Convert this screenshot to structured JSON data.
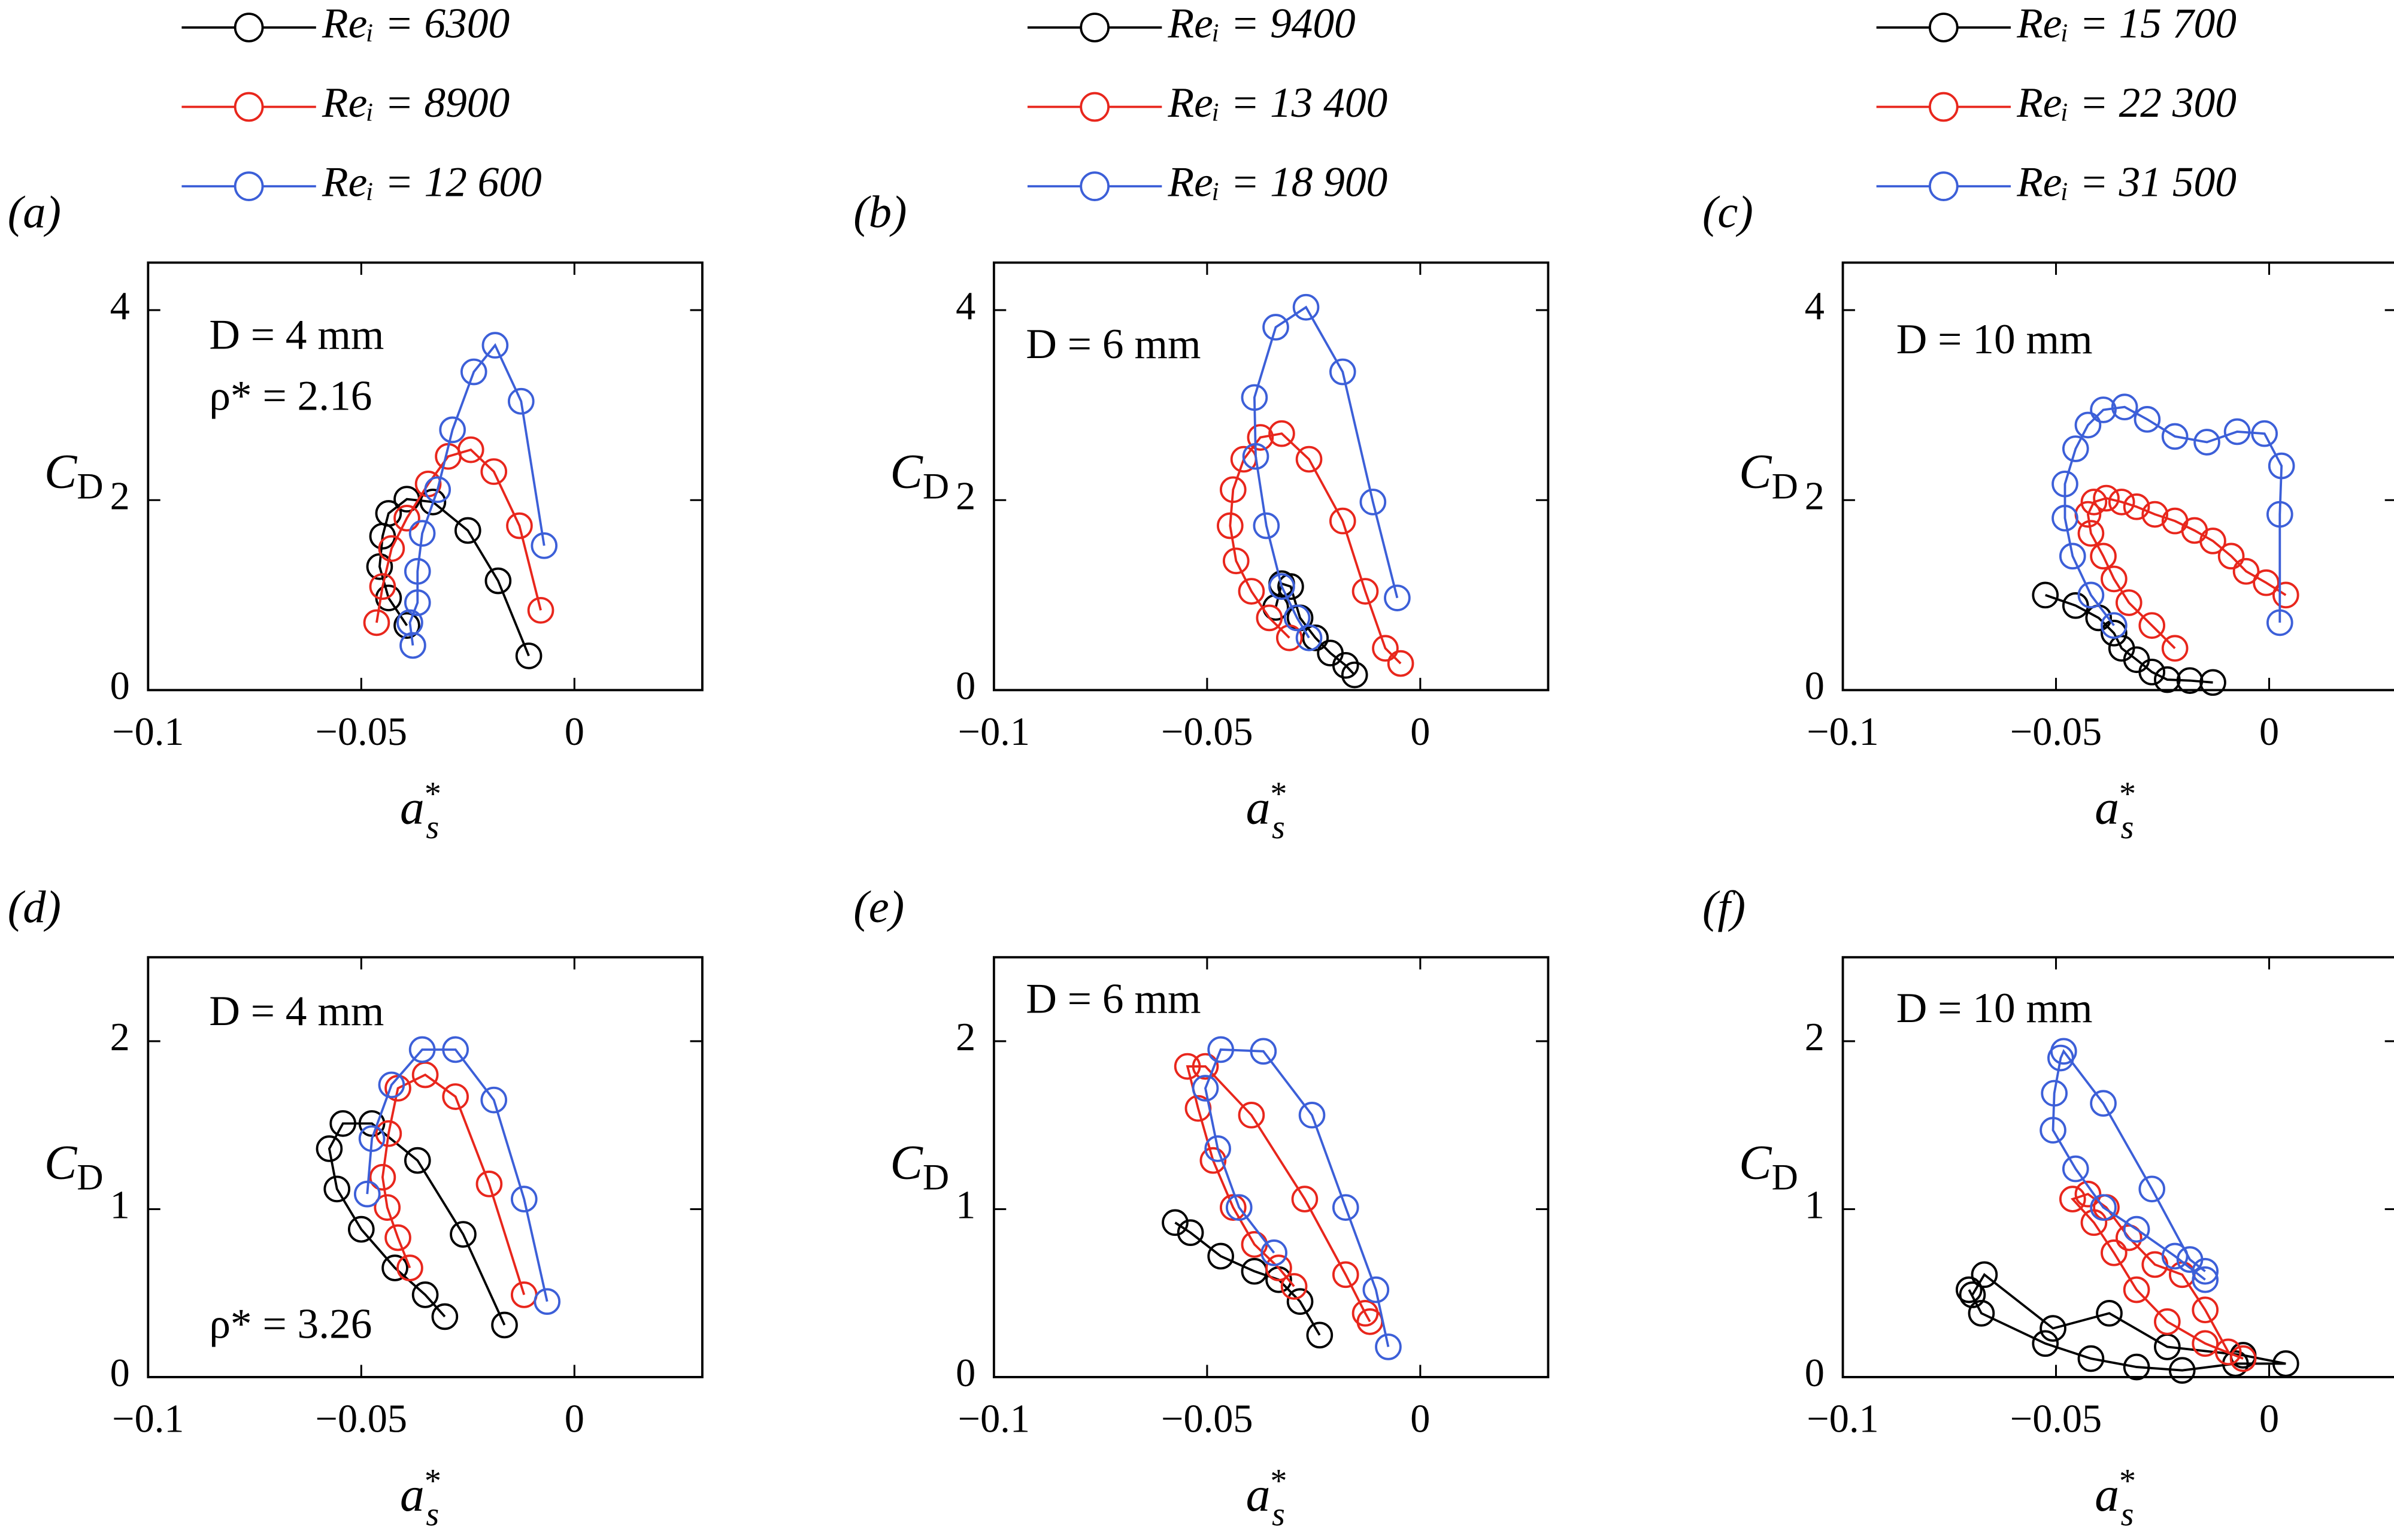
{
  "chart_data": [
    {
      "type": "line",
      "panel_label": "(a)",
      "annotations": [
        "D = 4 mm",
        "ρ* = 2.16"
      ],
      "xlabel": {
        "base": "a",
        "sup": "*",
        "sub": "s"
      },
      "ylabel": {
        "base": "C",
        "sub": "D"
      },
      "xlim": [
        -0.1,
        0.03
      ],
      "ylim": [
        0,
        4.5
      ],
      "xticks": [
        {
          "value": -0.1,
          "label": "−0.1"
        },
        {
          "value": -0.05,
          "label": "−0.05"
        },
        0
      ],
      "yticks": [
        0,
        2,
        4
      ],
      "series": [
        {
          "name": "Reᵢ = 6300",
          "color": "#000000",
          "x": [
            -0.0393,
            -0.0436,
            -0.0457,
            -0.045,
            -0.0436,
            -0.0393,
            -0.0332,
            -0.025,
            -0.0179,
            -0.0107
          ],
          "values": [
            0.68,
            0.97,
            1.3,
            1.62,
            1.86,
            2.01,
            1.98,
            1.68,
            1.15,
            0.36
          ]
        },
        {
          "name": "Reᵢ = 8900",
          "color": "#e8261c",
          "x": [
            -0.0464,
            -0.045,
            -0.0429,
            -0.0393,
            -0.0343,
            -0.0296,
            -0.0243,
            -0.0189,
            -0.0129,
            -0.0079
          ],
          "values": [
            0.71,
            1.09,
            1.49,
            1.81,
            2.17,
            2.46,
            2.53,
            2.3,
            1.73,
            0.84
          ]
        },
        {
          "name": "Reᵢ = 12 600",
          "color": "#3c5fd8",
          "x": [
            -0.0379,
            -0.0386,
            -0.0368,
            -0.0368,
            -0.0357,
            -0.0321,
            -0.0286,
            -0.0236,
            -0.0186,
            -0.0125,
            -0.0071
          ],
          "values": [
            0.47,
            0.71,
            0.92,
            1.25,
            1.65,
            2.11,
            2.74,
            3.35,
            3.63,
            3.04,
            1.52
          ]
        }
      ]
    },
    {
      "type": "line",
      "panel_label": "(b)",
      "annotations": [
        "D = 6 mm"
      ],
      "xlabel": {
        "base": "a",
        "sup": "*",
        "sub": "s"
      },
      "ylabel": {
        "base": "C",
        "sub": "D"
      },
      "xlim": [
        -0.1,
        0.03
      ],
      "ylim": [
        0,
        4.5
      ],
      "xticks": [
        {
          "value": -0.1,
          "label": "−0.1"
        },
        {
          "value": -0.05,
          "label": "−0.05"
        },
        0
      ],
      "yticks": [
        0,
        2,
        4
      ],
      "series": [
        {
          "name": "Reᵢ = 9400",
          "color": "#000000",
          "x": [
            -0.0339,
            -0.0325,
            -0.0304,
            -0.0282,
            -0.0246,
            -0.0211,
            -0.0175,
            -0.0154
          ],
          "values": [
            0.87,
            1.12,
            1.09,
            0.76,
            0.55,
            0.39,
            0.26,
            0.16
          ]
        },
        {
          "name": "Reᵢ = 13 400",
          "color": "#e8261c",
          "x": [
            -0.0307,
            -0.0354,
            -0.0396,
            -0.0432,
            -0.0446,
            -0.0439,
            -0.0414,
            -0.0375,
            -0.0325,
            -0.0261,
            -0.0182,
            -0.0129,
            -0.0082,
            -0.0046
          ],
          "values": [
            0.55,
            0.76,
            1.04,
            1.36,
            1.73,
            2.11,
            2.43,
            2.66,
            2.7,
            2.43,
            1.78,
            1.04,
            0.44,
            0.28
          ]
        },
        {
          "name": "Reᵢ = 18 900",
          "color": "#3c5fd8",
          "x": [
            -0.0261,
            -0.0289,
            -0.0325,
            -0.0361,
            -0.0386,
            -0.0389,
            -0.0339,
            -0.0268,
            -0.0182,
            -0.0111,
            -0.0054
          ],
          "values": [
            0.55,
            0.76,
            1.09,
            1.73,
            2.46,
            3.08,
            3.82,
            4.03,
            3.35,
            1.98,
            0.97
          ]
        }
      ]
    },
    {
      "type": "line",
      "panel_label": "(c)",
      "annotations": [
        "D = 10 mm"
      ],
      "xlabel": {
        "base": "a",
        "sup": "*",
        "sub": "s"
      },
      "ylabel": {
        "base": "C",
        "sub": "D"
      },
      "xlim": [
        -0.1,
        0.03
      ],
      "ylim": [
        0,
        4.5
      ],
      "xticks": [
        {
          "value": -0.1,
          "label": "−0.1"
        },
        {
          "value": -0.05,
          "label": "−0.05"
        },
        0
      ],
      "yticks": [
        0,
        2,
        4
      ],
      "series": [
        {
          "name": "Reᵢ = 15 700",
          "color": "#000000",
          "x": [
            -0.0525,
            -0.0454,
            -0.04,
            -0.0364,
            -0.0346,
            -0.0311,
            -0.0275,
            -0.0239,
            -0.0186,
            -0.0132
          ],
          "values": [
            1.0,
            0.89,
            0.76,
            0.6,
            0.44,
            0.32,
            0.19,
            0.11,
            0.1,
            0.08
          ]
        },
        {
          "name": "Reᵢ = 22 300",
          "color": "#e8261c",
          "x": [
            -0.0221,
            -0.0275,
            -0.0329,
            -0.0364,
            -0.0389,
            -0.0418,
            -0.0425,
            -0.0411,
            -0.0382,
            -0.0346,
            -0.0311,
            -0.0268,
            -0.0221,
            -0.0175,
            -0.0132,
            -0.0089,
            -0.0054,
            -0.0007,
            0.0039
          ],
          "values": [
            0.44,
            0.68,
            0.92,
            1.17,
            1.41,
            1.65,
            1.85,
            1.98,
            2.02,
            1.98,
            1.93,
            1.85,
            1.78,
            1.68,
            1.57,
            1.41,
            1.25,
            1.13,
            1.0
          ]
        },
        {
          "name": "Reᵢ = 31 500",
          "color": "#3c5fd8",
          "x": [
            -0.0364,
            -0.0418,
            -0.0461,
            -0.0479,
            -0.0479,
            -0.0454,
            -0.0425,
            -0.0389,
            -0.0339,
            -0.0286,
            -0.0221,
            -0.0146,
            -0.0075,
            -0.0011,
            0.0029,
            0.0025,
            0.0025
          ],
          "values": [
            0.68,
            1.0,
            1.41,
            1.81,
            2.17,
            2.54,
            2.79,
            2.95,
            2.98,
            2.85,
            2.67,
            2.61,
            2.72,
            2.7,
            2.36,
            1.85,
            0.71
          ]
        }
      ]
    },
    {
      "type": "line",
      "panel_label": "(d)",
      "annotations": [
        "D = 4 mm",
        "ρ* = 3.26"
      ],
      "xlabel": {
        "base": "a",
        "sup": "*",
        "sub": "s"
      },
      "ylabel": {
        "base": "C",
        "sub": "D"
      },
      "xlim": [
        -0.1,
        0.03
      ],
      "ylim": [
        0,
        2.5
      ],
      "xticks": [
        {
          "value": -0.1,
          "label": "−0.1"
        },
        {
          "value": -0.05,
          "label": "−0.05"
        },
        0
      ],
      "yticks": [
        0,
        1,
        2
      ],
      "series": [
        {
          "color": "#000000",
          "x": [
            -0.0304,
            -0.035,
            -0.0421,
            -0.05,
            -0.0557,
            -0.0575,
            -0.0543,
            -0.0475,
            -0.0368,
            -0.0261,
            -0.0164
          ],
          "values": [
            0.36,
            0.49,
            0.65,
            0.88,
            1.12,
            1.36,
            1.51,
            1.51,
            1.29,
            0.85,
            0.31
          ]
        },
        {
          "color": "#e8261c",
          "x": [
            -0.0386,
            -0.0414,
            -0.0439,
            -0.045,
            -0.0436,
            -0.0414,
            -0.035,
            -0.0279,
            -0.02,
            -0.0118
          ],
          "values": [
            0.65,
            0.83,
            1.01,
            1.19,
            1.45,
            1.72,
            1.8,
            1.67,
            1.15,
            0.49
          ]
        },
        {
          "color": "#3c5fd8",
          "x": [
            -0.0486,
            -0.0475,
            -0.0429,
            -0.0357,
            -0.0279,
            -0.0189,
            -0.0118,
            -0.0064
          ],
          "values": [
            1.09,
            1.42,
            1.74,
            1.95,
            1.95,
            1.65,
            1.06,
            0.45
          ]
        }
      ]
    },
    {
      "type": "line",
      "panel_label": "(e)",
      "annotations": [
        "D = 6 mm"
      ],
      "xlabel": {
        "base": "a",
        "sup": "*",
        "sub": "s"
      },
      "ylabel": {
        "base": "C",
        "sub": "D"
      },
      "xlim": [
        -0.1,
        0.03
      ],
      "ylim": [
        0,
        2.5
      ],
      "xticks": [
        {
          "value": -0.1,
          "label": "−0.1"
        },
        {
          "value": -0.05,
          "label": "−0.05"
        },
        0
      ],
      "yticks": [
        0,
        1,
        2
      ],
      "series": [
        {
          "color": "#000000",
          "x": [
            -0.0575,
            -0.0539,
            -0.0468,
            -0.0389,
            -0.0332,
            -0.0282,
            -0.0236
          ],
          "values": [
            0.92,
            0.86,
            0.72,
            0.63,
            0.58,
            0.45,
            0.25
          ]
        },
        {
          "color": "#e8261c",
          "x": [
            -0.0296,
            -0.0332,
            -0.0389,
            -0.0439,
            -0.0486,
            -0.0521,
            -0.0546,
            -0.0504,
            -0.0396,
            -0.0271,
            -0.0175,
            -0.0129,
            -0.0118
          ],
          "values": [
            0.54,
            0.65,
            0.79,
            1.01,
            1.29,
            1.6,
            1.85,
            1.85,
            1.56,
            1.06,
            0.61,
            0.38,
            0.33
          ]
        },
        {
          "color": "#3c5fd8",
          "x": [
            -0.0343,
            -0.0425,
            -0.0475,
            -0.0504,
            -0.0468,
            -0.0368,
            -0.0254,
            -0.0175,
            -0.0104,
            -0.0075
          ],
          "values": [
            0.74,
            1.01,
            1.36,
            1.72,
            1.95,
            1.94,
            1.56,
            1.01,
            0.52,
            0.18
          ]
        }
      ]
    },
    {
      "type": "line",
      "panel_label": "(f)",
      "annotations": [
        "D = 10 mm"
      ],
      "xlabel": {
        "base": "a",
        "sup": "*",
        "sub": "s"
      },
      "ylabel": {
        "base": "C",
        "sub": "D"
      },
      "xlim": [
        -0.1,
        0.03
      ],
      "ylim": [
        0,
        2.5
      ],
      "xticks": [
        {
          "value": -0.1,
          "label": "−0.1"
        },
        {
          "value": -0.05,
          "label": "−0.05"
        },
        0
      ],
      "yticks": [
        0,
        1,
        2
      ],
      "series": [
        {
          "color": "#000000",
          "x": [
            -0.0704,
            -0.0675,
            -0.0525,
            -0.0418,
            -0.0311,
            -0.0204,
            -0.0079,
            0.0039,
            -0.0061,
            -0.0239,
            -0.0375,
            -0.0507,
            -0.0668,
            -0.0696
          ],
          "values": [
            0.52,
            0.38,
            0.2,
            0.11,
            0.06,
            0.04,
            0.08,
            0.08,
            0.13,
            0.18,
            0.38,
            0.29,
            0.61,
            0.49
          ]
        },
        {
          "color": "#e8261c",
          "x": [
            -0.0061,
            -0.015,
            -0.0239,
            -0.0311,
            -0.0364,
            -0.0411,
            -0.0461,
            -0.0425,
            -0.0382,
            -0.0329,
            -0.0268,
            -0.0204,
            -0.015,
            -0.0096
          ],
          "values": [
            0.11,
            0.2,
            0.33,
            0.52,
            0.74,
            0.92,
            1.06,
            1.09,
            1.01,
            0.83,
            0.67,
            0.61,
            0.4,
            0.15
          ]
        },
        {
          "color": "#3c5fd8",
          "x": [
            -0.015,
            -0.0221,
            -0.0311,
            -0.0389,
            -0.0454,
            -0.0507,
            -0.0504,
            -0.0489,
            -0.0482,
            -0.0389,
            -0.0275,
            -0.0186,
            -0.015
          ],
          "values": [
            0.58,
            0.72,
            0.88,
            1.01,
            1.24,
            1.47,
            1.69,
            1.9,
            1.94,
            1.63,
            1.12,
            0.7,
            0.63
          ]
        }
      ]
    }
  ]
}
